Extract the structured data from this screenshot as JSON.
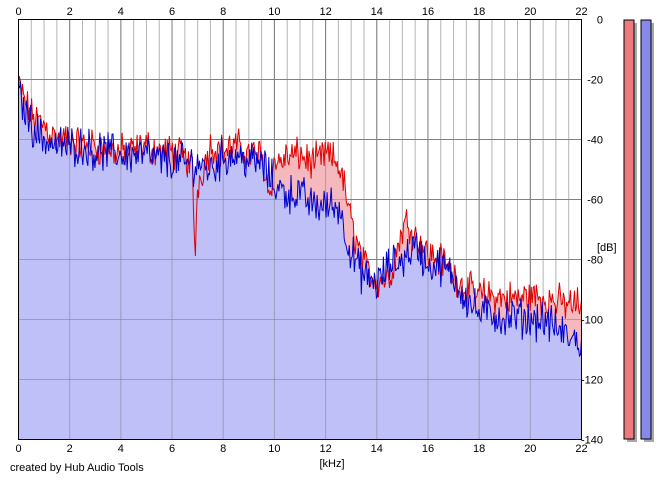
{
  "credit": "created by Hub Audio Tools",
  "chart_data": {
    "type": "area",
    "xlabel": "[kHz]",
    "ylabel": "[dB]",
    "x_ticks": [
      "0",
      "2",
      "4",
      "6",
      "8",
      "10",
      "12",
      "14",
      "16",
      "18",
      "20",
      "22"
    ],
    "y_ticks": [
      "0",
      "-20",
      "-40",
      "-60",
      "-80",
      "-100",
      "-120",
      "-140"
    ],
    "xlim": [
      0,
      22
    ],
    "ylim": [
      -140,
      0
    ],
    "grid": true,
    "colors": {
      "series_1": "#e00000",
      "series_1_fill": "#f5b8bc",
      "series_2": "#0000cc",
      "series_2_fill": "#c0c0f8",
      "grid": "#b4b4b4",
      "grid_major": "#808080"
    },
    "series": [
      {
        "x": [
          0,
          0.5,
          1,
          1.5,
          2,
          2.5,
          3,
          3.5,
          4,
          4.5,
          5,
          5.5,
          6,
          6.5,
          6.8,
          6.9,
          7,
          7.5,
          8,
          8.5,
          9,
          9.5,
          9.8,
          10,
          10.5,
          11,
          11.5,
          12,
          12.5,
          12.8,
          13,
          13.5,
          14,
          14.5,
          15,
          15.2,
          15.5,
          16,
          16.5,
          17,
          17.5,
          18,
          18.5,
          19,
          19.5,
          20,
          20.5,
          21,
          21.5,
          22
        ],
        "values": [
          -22,
          -32,
          -35,
          -40,
          -40,
          -42,
          -42,
          -44,
          -44,
          -44,
          -42,
          -44,
          -44,
          -46,
          -50,
          -80,
          -55,
          -42,
          -44,
          -42,
          -45,
          -45,
          -58,
          -48,
          -46,
          -45,
          -48,
          -45,
          -48,
          -58,
          -68,
          -82,
          -87,
          -86,
          -70,
          -67,
          -72,
          -78,
          -80,
          -85,
          -90,
          -92,
          -92,
          -93,
          -93,
          -92,
          -93,
          -94,
          -95,
          -95
        ]
      },
      {
        "x": [
          0,
          0.5,
          1,
          1.5,
          2,
          2.5,
          3,
          3.5,
          4,
          4.5,
          5,
          5.5,
          6,
          6.5,
          7,
          7.5,
          8,
          8.5,
          9,
          9.5,
          10,
          10.5,
          11,
          11.5,
          12,
          12.5,
          13,
          13.5,
          14,
          14.5,
          15,
          15.5,
          16,
          16.5,
          17,
          17.5,
          18,
          18.5,
          19,
          19.5,
          20,
          20.5,
          21,
          21.5,
          22
        ],
        "values": [
          -25,
          -35,
          -40,
          -42,
          -42,
          -42,
          -44,
          -44,
          -45,
          -45,
          -45,
          -47,
          -47,
          -48,
          -48,
          -50,
          -46,
          -45,
          -47,
          -48,
          -55,
          -58,
          -58,
          -62,
          -62,
          -62,
          -78,
          -86,
          -88,
          -82,
          -80,
          -75,
          -82,
          -82,
          -86,
          -93,
          -98,
          -98,
          -100,
          -99,
          -100,
          -100,
          -103,
          -106,
          -108
        ]
      }
    ],
    "level_meters": [
      {
        "channel": "left",
        "color": "#ec7a7e",
        "level_db": 0
      },
      {
        "channel": "right",
        "color": "#8888ec",
        "level_db": 0
      }
    ]
  }
}
